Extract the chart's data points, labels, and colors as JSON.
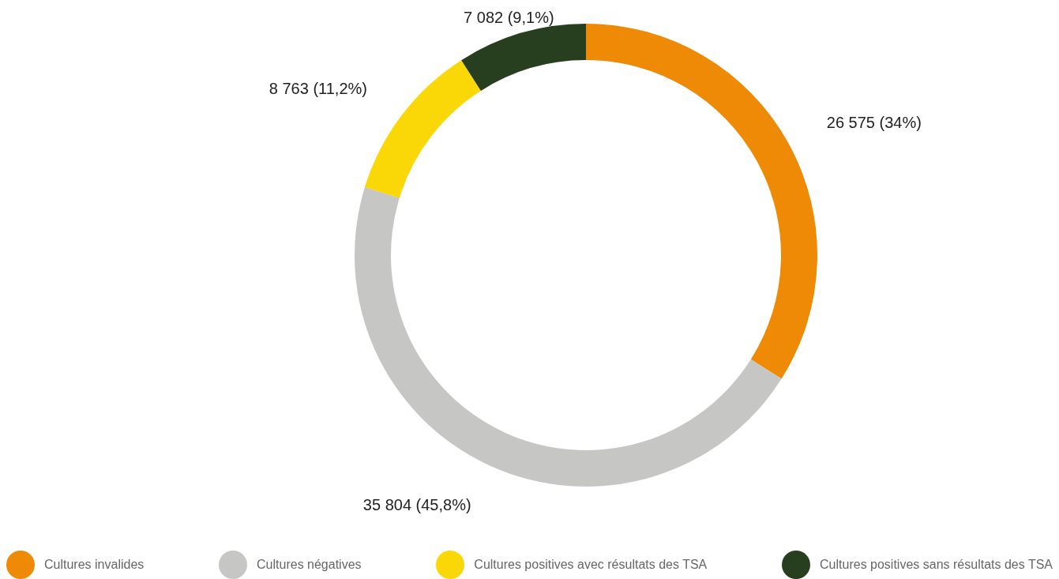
{
  "chart_data": {
    "type": "donut",
    "categories": [
      "Cultures invalides",
      "Cultures négatives",
      "Cultures positives avec résultats des TSA",
      "Cultures positives sans résultats des TSA"
    ],
    "values": [
      26575,
      35804,
      8763,
      7082
    ],
    "colors": [
      "#ee8a06",
      "#c6c6c4",
      "#fad808",
      "#283f1f"
    ],
    "value_labels": [
      "26 575 (34%)",
      "35 804 (45,8%)",
      "8 763 (11,2%)",
      "7 082 (9,1%)"
    ],
    "legend": "bottom"
  }
}
